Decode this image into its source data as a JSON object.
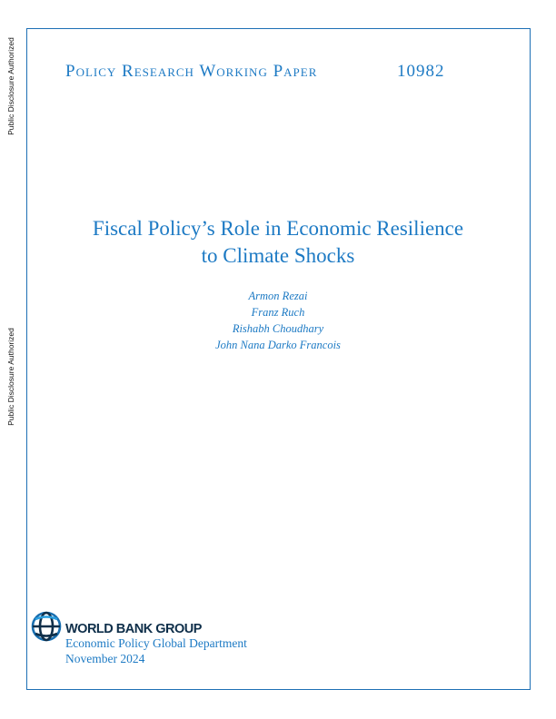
{
  "side_labels": [
    "Public Disclosure Authorized",
    "Public Disclosure Authorized"
  ],
  "header": {
    "series": "Policy Research Working Paper",
    "number": "10982"
  },
  "title": {
    "line1": "Fiscal Policy’s Role in Economic Resilience",
    "line2": "to Climate Shocks"
  },
  "authors": [
    "Armon Rezai",
    "Franz Ruch",
    "Rishabh Choudhary",
    "John Nana Darko Francois"
  ],
  "footer": {
    "logo_text": "WORLD BANK GROUP",
    "department": "Economic Policy Global Department",
    "date": "November 2024"
  },
  "colors": {
    "accent": "#1d7ac4",
    "logo_dark": "#0f2f4a"
  }
}
